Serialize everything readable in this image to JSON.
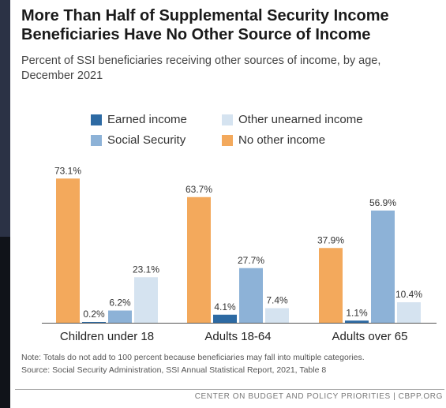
{
  "header": {
    "title_line1": "More Than Half of Supplemental Security Income",
    "title_line2": "Beneficiaries Have No Other Source of Income",
    "subtitle_line1": "Percent of SSI beneficiaries receiving other sources of income, by age,",
    "subtitle_line2": "December 2021"
  },
  "colors": {
    "earned": "#2d6aa3",
    "social_security": "#8db2d7",
    "other_unearned": "#d5e3f0",
    "no_other": "#f3a95c"
  },
  "legend": [
    {
      "label": "Earned income",
      "color": "#2d6aa3"
    },
    {
      "label": "Other unearned income",
      "color": "#d5e3f0"
    },
    {
      "label": "Social Security",
      "color": "#8db2d7"
    },
    {
      "label": "No other income",
      "color": "#f3a95c"
    }
  ],
  "chart_data": {
    "type": "bar",
    "categories": [
      "Children under 18",
      "Adults 18-64",
      "Adults over 65"
    ],
    "series": [
      {
        "name": "No other income",
        "values": [
          73.1,
          63.7,
          37.9
        ],
        "labels": [
          "73.1%",
          "63.7%",
          "37.9%"
        ]
      },
      {
        "name": "Earned income",
        "values": [
          0.2,
          4.1,
          1.1
        ],
        "labels": [
          "0.2%",
          "4.1%",
          "1.1%"
        ]
      },
      {
        "name": "Social Security",
        "values": [
          6.2,
          27.7,
          56.9
        ],
        "labels": [
          "6.2%",
          "27.7%",
          "56.9%"
        ]
      },
      {
        "name": "Other unearned income",
        "values": [
          23.1,
          7.4,
          10.4
        ],
        "labels": [
          "23.1%",
          "7.4%",
          "10.4%"
        ]
      }
    ],
    "ylim": [
      0,
      80
    ],
    "grid": false,
    "legend_position": "top"
  },
  "footnotes": {
    "note": "Note: Totals do not add to 100 percent because beneficiaries may fall into multiple categories.",
    "source": "Source: Social Security Administration, SSI Annual Statistical Report, 2021, Table 8"
  },
  "footer": "CENTER ON BUDGET AND POLICY PRIORITIES | CBPP.ORG"
}
